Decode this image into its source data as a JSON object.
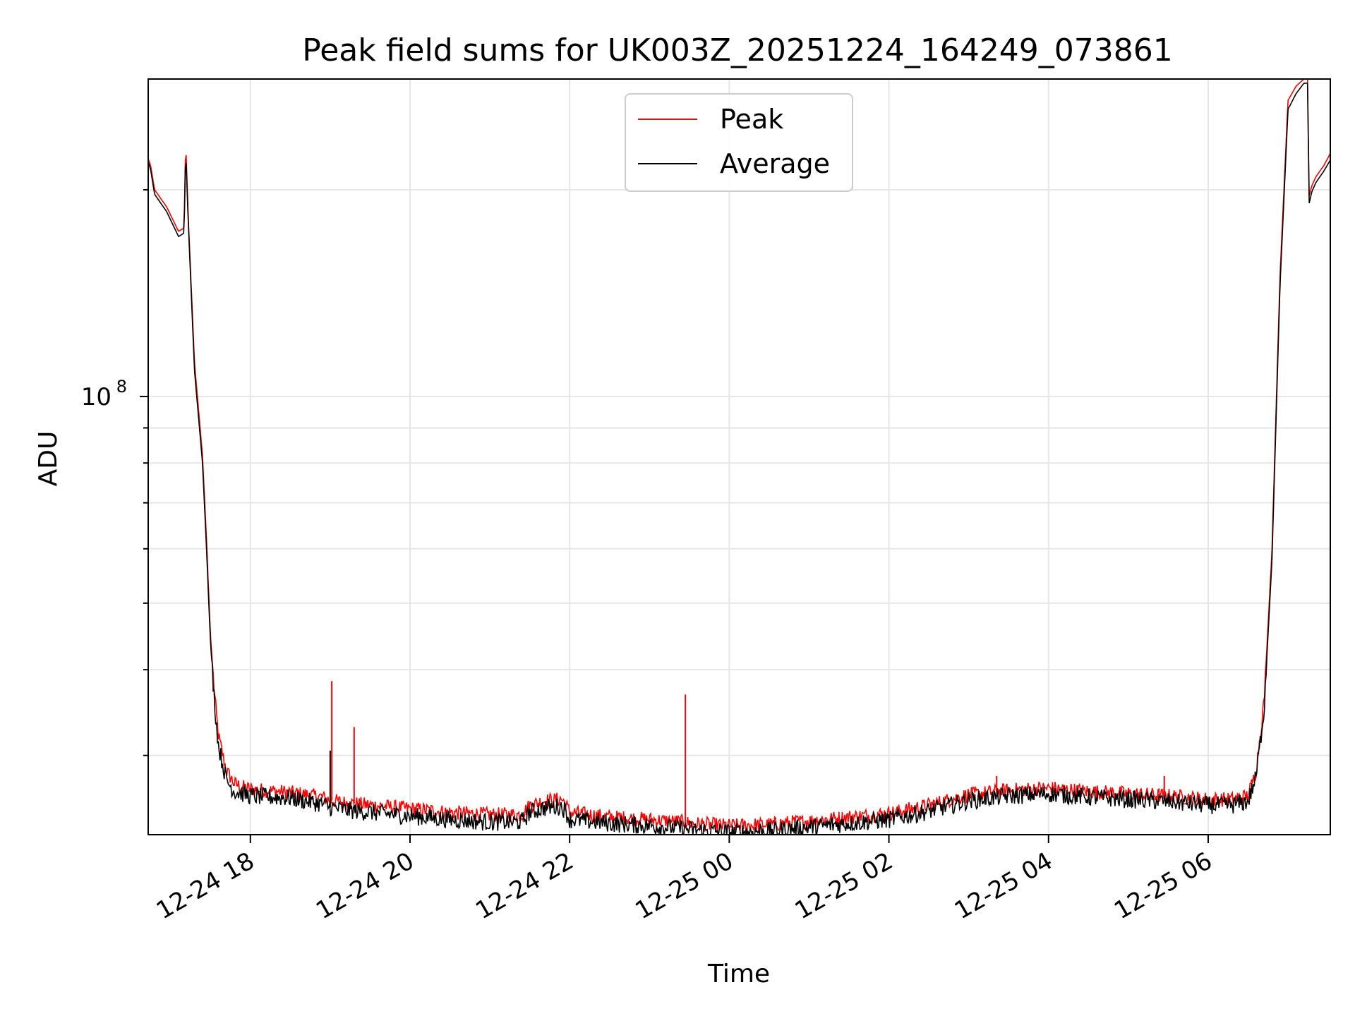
{
  "chart_data": {
    "type": "line",
    "title": "Peak field sums for UK003Z_20251224_164249_073861",
    "xlabel": "Time",
    "ylabel": "ADU",
    "yscale": "log",
    "ylim": [
      23000000,
      290000000
    ],
    "xlim": [
      16.72,
      31.53
    ],
    "grid": true,
    "legend_position": "top-center",
    "x_ticks": [
      {
        "value": 18,
        "label": "12-24 18"
      },
      {
        "value": 20,
        "label": "12-24 20"
      },
      {
        "value": 22,
        "label": "12-24 22"
      },
      {
        "value": 24,
        "label": "12-25 00"
      },
      {
        "value": 26,
        "label": "12-25 02"
      },
      {
        "value": 28,
        "label": "12-25 04"
      },
      {
        "value": 30,
        "label": "12-25 06"
      }
    ],
    "y_major_ticks": [
      {
        "value": 100000000,
        "base": "10",
        "exp": "8"
      }
    ],
    "y_minor_ticks": [
      30000000,
      40000000,
      50000000,
      60000000,
      70000000,
      80000000,
      90000000,
      200000000
    ],
    "series": [
      {
        "name": "Peak",
        "color": "#ff0000",
        "x": [
          16.72,
          16.75,
          16.8,
          16.95,
          17.1,
          17.17,
          17.19,
          17.22,
          17.3,
          17.4,
          17.45,
          17.5,
          17.55,
          17.6,
          17.7,
          17.8,
          17.9,
          18.0,
          18.5,
          18.9,
          19.0,
          19.2,
          19.5,
          20.0,
          20.5,
          21.0,
          21.4,
          21.5,
          21.7,
          21.9,
          21.95,
          22.0,
          22.5,
          23.0,
          23.4,
          23.5,
          24.0,
          24.5,
          25.0,
          25.5,
          26.0,
          26.5,
          27.0,
          27.5,
          28.0,
          28.5,
          29.0,
          29.5,
          30.0,
          30.3,
          30.5,
          30.6,
          30.7,
          30.8,
          30.9,
          31.0,
          31.1,
          31.2,
          31.25,
          31.26,
          31.3,
          31.35,
          31.45,
          31.53
        ],
        "y": [
          222000000,
          217000000,
          200000000,
          189000000,
          174000000,
          176000000,
          236000000,
          185000000,
          112000000,
          82000000,
          62000000,
          45000000,
          37000000,
          32000000,
          28500000,
          27300000,
          27000000,
          26800000,
          26500000,
          26100000,
          25800000,
          25600000,
          25400000,
          25100000,
          24800000,
          24600000,
          24600000,
          25400000,
          25800000,
          25900000,
          25500000,
          24800000,
          24400000,
          24200000,
          24000000,
          23900000,
          23700000,
          23800000,
          24100000,
          24400000,
          24700000,
          25400000,
          26300000,
          26700000,
          26900000,
          26600000,
          26400000,
          26200000,
          25900000,
          25900000,
          26200000,
          28500000,
          36000000,
          60000000,
          150000000,
          270000000,
          283000000,
          290000000,
          290000000,
          195000000,
          203000000,
          209000000,
          217000000,
          226000000
        ]
      },
      {
        "name": "Average",
        "color": "#000000",
        "x": [
          16.72,
          16.75,
          16.8,
          16.95,
          17.1,
          17.17,
          17.19,
          17.22,
          17.3,
          17.4,
          17.45,
          17.5,
          17.55,
          17.6,
          17.7,
          17.8,
          17.9,
          18.0,
          18.5,
          18.9,
          19.0,
          19.2,
          19.5,
          20.0,
          20.5,
          21.0,
          21.4,
          21.5,
          21.7,
          21.9,
          21.95,
          22.0,
          22.5,
          23.0,
          23.4,
          23.5,
          24.0,
          24.5,
          25.0,
          25.5,
          26.0,
          26.5,
          27.0,
          27.5,
          28.0,
          28.5,
          29.0,
          29.5,
          30.0,
          30.3,
          30.5,
          30.6,
          30.7,
          30.8,
          30.9,
          31.0,
          31.1,
          31.2,
          31.25,
          31.26,
          31.3,
          31.35,
          31.45,
          31.53
        ],
        "y": [
          220000000,
          214000000,
          197000000,
          186000000,
          171000000,
          173000000,
          229000000,
          182000000,
          109000000,
          80000000,
          60000000,
          44000000,
          36000000,
          31000000,
          27600000,
          26600000,
          26400000,
          26200000,
          26000000,
          25500000,
          25200000,
          25000000,
          24800000,
          24500000,
          24200000,
          24000000,
          24000000,
          24800000,
          25200000,
          25300000,
          24900000,
          24200000,
          23900000,
          23700000,
          23500000,
          23400000,
          23200000,
          23300000,
          23600000,
          23900000,
          24200000,
          24900000,
          25800000,
          26200000,
          26400000,
          26100000,
          25900000,
          25700000,
          25400000,
          25400000,
          25700000,
          27900000,
          35000000,
          58000000,
          145000000,
          262000000,
          276000000,
          286000000,
          286000000,
          190000000,
          199000000,
          205000000,
          213000000,
          221000000
        ]
      }
    ],
    "spikes": [
      {
        "series": "Peak",
        "x": 19.02,
        "y": 38500000
      },
      {
        "series": "Peak",
        "x": 19.3,
        "y": 33000000
      },
      {
        "series": "Peak",
        "x": 23.45,
        "y": 36800000
      },
      {
        "series": "Peak",
        "x": 27.35,
        "y": 28000000
      },
      {
        "series": "Peak",
        "x": 29.45,
        "y": 28000000
      },
      {
        "series": "Average",
        "x": 19.0,
        "y": 30500000
      }
    ],
    "legend": [
      {
        "label": "Peak",
        "color": "#ff0000"
      },
      {
        "label": "Average",
        "color": "#000000"
      }
    ]
  }
}
